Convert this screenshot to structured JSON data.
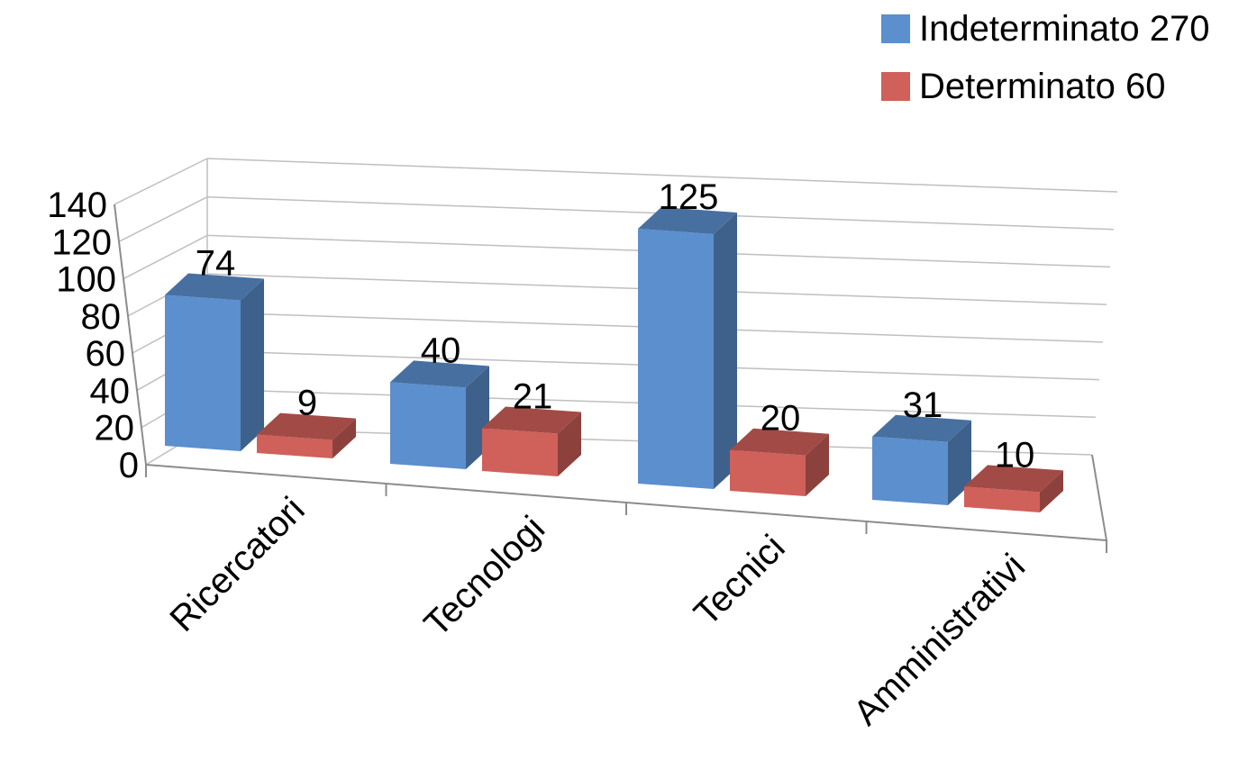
{
  "chart_data": {
    "type": "bar",
    "categories": [
      "Ricercatori",
      "Tecnologi",
      "Tecnici",
      "Amministrativi"
    ],
    "series": [
      {
        "name": "Indeterminato 270",
        "values": [
          74,
          40,
          125,
          31
        ],
        "color": "#5b8fce"
      },
      {
        "name": "Determinato 60",
        "values": [
          9,
          21,
          20,
          10
        ],
        "color": "#d0605a"
      }
    ],
    "data_labels": true,
    "ylim": [
      0,
      140
    ],
    "ytick_step": 20,
    "yticks": [
      "0",
      "20",
      "40",
      "60",
      "80",
      "100",
      "120",
      "140"
    ],
    "grid": true,
    "legend_position": "top-right",
    "style": "3d-clustered-column"
  }
}
